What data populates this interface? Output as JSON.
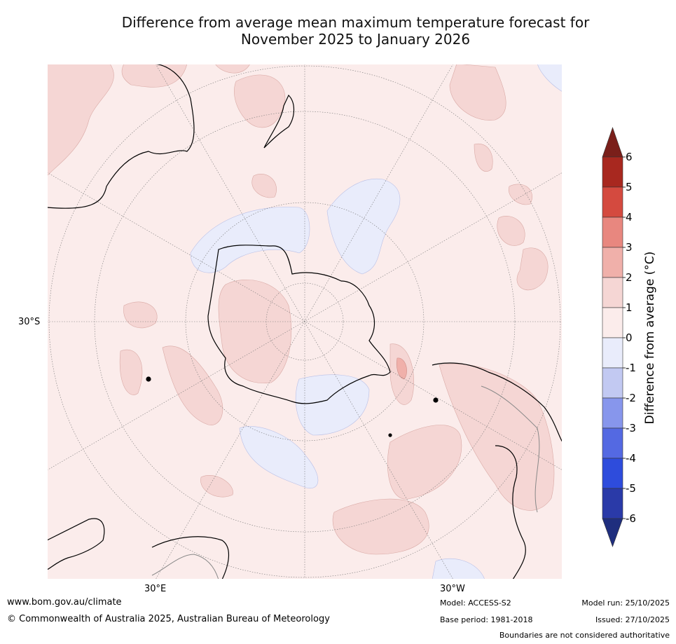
{
  "title": {
    "line1": "Difference from average mean maximum temperature forecast for",
    "line2": "November 2025 to January 2026"
  },
  "axes": {
    "lat_label": "30°S",
    "lon_label_left": "30°E",
    "lon_label_right": "30°W"
  },
  "colorbar": {
    "label": "Difference from average (°C)",
    "ticks": [
      "6",
      "5",
      "4",
      "3",
      "2",
      "1",
      "0",
      "-1",
      "-2",
      "-3",
      "-4",
      "-5",
      "-6"
    ],
    "colors_top_to_bottom": [
      "#7a1f1a",
      "#a8281f",
      "#d44a3f",
      "#e8877f",
      "#f0b0aa",
      "#f5d6d4",
      "#fbeceb",
      "#e9ecfb",
      "#c2c9f2",
      "#8796ec",
      "#5469e2",
      "#2e4cdc",
      "#2a3aa8",
      "#1f2e7e"
    ]
  },
  "map": {
    "background_color": "#fbeceb",
    "warm_color": "#f5d6d4",
    "warmer_color": "#f0b0aa",
    "cool_color": "#e9ecfb",
    "coast_color": "#000000"
  },
  "footer": {
    "website": "www.bom.gov.au/climate",
    "copyright": "© Commonwealth of Australia 2025, Australian Bureau of Meteorology",
    "model": "Model: ACCESS-S2",
    "base_period": "Base period: 1981-2018",
    "model_run": "Model run: 25/10/2025",
    "issued": "Issued: 27/10/2025",
    "disclaimer": "Boundaries are not considered authoritative"
  }
}
